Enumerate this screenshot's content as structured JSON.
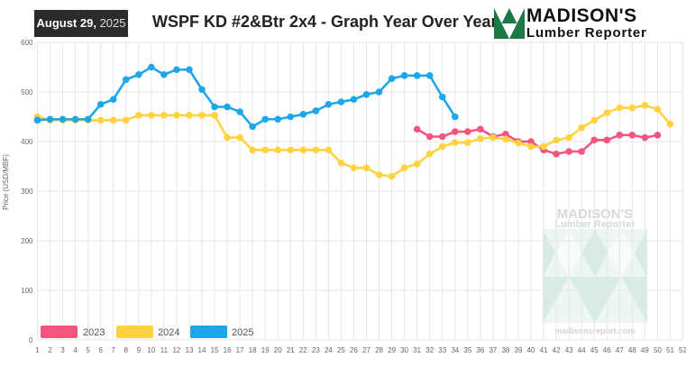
{
  "header": {
    "date_bold": "August 29,",
    "date_year": "2025",
    "title": "WSPF KD #2&Btr 2x4 - Graph Year Over Year",
    "logo_name": "MADISON'S",
    "logo_sub": "Lumber Reporter",
    "watermark_name": "MADISON'S",
    "watermark_sub": "Lumber Reporter",
    "watermark_url": "madisonsreport.com"
  },
  "colors": {
    "2023": "#f4557e",
    "2024": "#ffd23f",
    "2025": "#1ea7e8",
    "logo_green": "#1b7a43",
    "grid": "#e6e6e6"
  },
  "chart_data": {
    "type": "line",
    "title": "WSPF KD #2&Btr 2x4 - Graph Year Over Year",
    "xlabel": "",
    "ylabel": "Price (USD/MBF)",
    "ylim": [
      0,
      600
    ],
    "yticks": [
      0,
      100,
      200,
      300,
      400,
      500,
      600
    ],
    "xlim": [
      1,
      52
    ],
    "xticks": [
      1,
      2,
      3,
      4,
      5,
      6,
      7,
      8,
      9,
      10,
      11,
      12,
      13,
      14,
      15,
      16,
      17,
      18,
      19,
      20,
      21,
      22,
      23,
      24,
      25,
      26,
      27,
      28,
      29,
      30,
      31,
      32,
      33,
      34,
      35,
      36,
      37,
      38,
      39,
      40,
      41,
      42,
      43,
      44,
      45,
      46,
      47,
      48,
      49,
      50,
      51,
      52
    ],
    "grid": true,
    "legend_position": "bottom-left",
    "series": [
      {
        "name": "2023",
        "x": [
          31,
          32,
          33,
          34,
          35,
          36,
          37,
          38,
          39,
          40,
          41,
          42,
          43,
          44,
          45,
          46,
          47,
          48,
          49,
          50
        ],
        "y": [
          425,
          410,
          410,
          420,
          420,
          425,
          410,
          415,
          400,
          400,
          383,
          375,
          380,
          380,
          403,
          403,
          413,
          413,
          408,
          413
        ]
      },
      {
        "name": "2024",
        "x": [
          1,
          2,
          3,
          4,
          5,
          6,
          7,
          8,
          9,
          10,
          11,
          12,
          13,
          14,
          15,
          16,
          17,
          18,
          19,
          20,
          21,
          22,
          23,
          24,
          25,
          26,
          27,
          28,
          29,
          30,
          31,
          32,
          33,
          34,
          35,
          36,
          37,
          38,
          39,
          40,
          41,
          42,
          43,
          44,
          45,
          46,
          47,
          48,
          49,
          50,
          51
        ],
        "y": [
          450,
          443,
          443,
          443,
          443,
          443,
          443,
          443,
          453,
          453,
          453,
          453,
          453,
          453,
          453,
          408,
          408,
          383,
          383,
          383,
          383,
          383,
          383,
          383,
          357,
          347,
          347,
          333,
          330,
          347,
          355,
          375,
          390,
          398,
          398,
          406,
          408,
          405,
          397,
          390,
          390,
          403,
          408,
          428,
          443,
          458,
          468,
          468,
          473,
          465,
          435
        ]
      },
      {
        "name": "2025",
        "x": [
          1,
          2,
          3,
          4,
          5,
          6,
          7,
          8,
          9,
          10,
          11,
          12,
          13,
          14,
          15,
          16,
          17,
          18,
          19,
          20,
          21,
          22,
          23,
          24,
          25,
          26,
          27,
          28,
          29,
          30,
          31,
          32,
          33,
          34
        ],
        "y": [
          443,
          445,
          445,
          445,
          445,
          475,
          485,
          525,
          535,
          550,
          535,
          545,
          545,
          505,
          470,
          470,
          460,
          430,
          445,
          445,
          450,
          455,
          462,
          475,
          480,
          485,
          495,
          500,
          527,
          533,
          533,
          533,
          490,
          450
        ]
      }
    ]
  }
}
